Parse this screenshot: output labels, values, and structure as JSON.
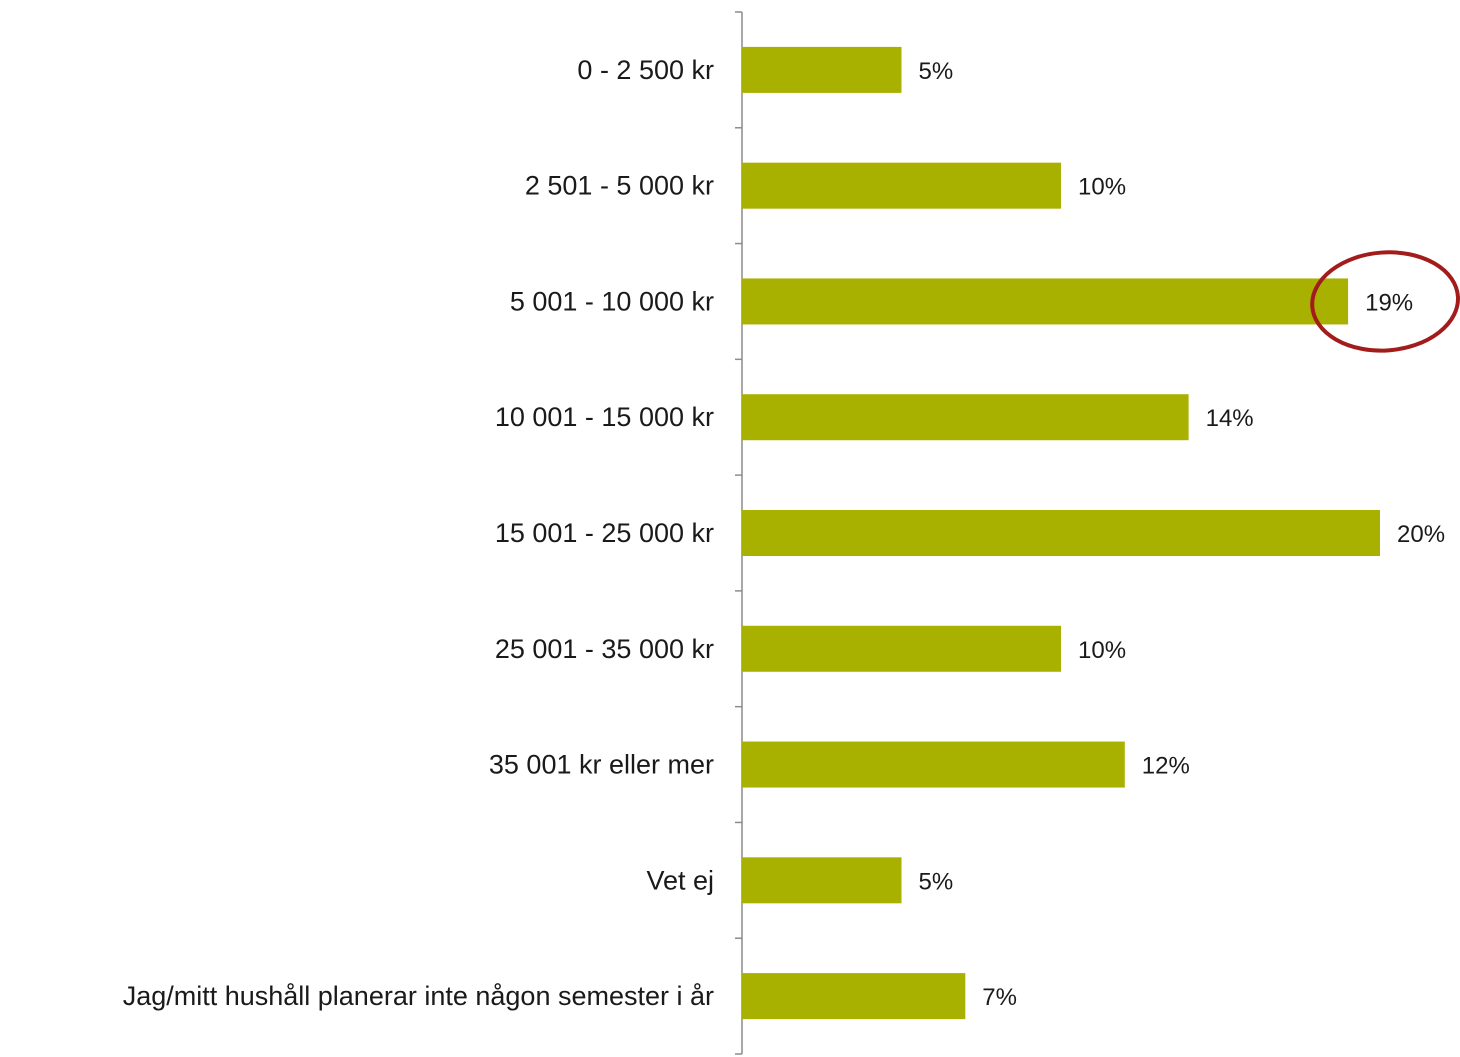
{
  "chart_data": {
    "type": "bar",
    "orientation": "horizontal",
    "categories": [
      "0 - 2 500 kr",
      "2 501 - 5 000 kr",
      "5 001 - 10 000 kr",
      "10 001 - 15 000 kr",
      "15 001 - 25 000 kr",
      "25 001 - 35 000 kr",
      "35 001 kr eller mer",
      "Vet ej",
      "Jag/mitt hushåll planerar inte någon semester i år"
    ],
    "values": [
      5,
      10,
      19,
      14,
      20,
      10,
      12,
      5,
      7
    ],
    "value_labels": [
      "5%",
      "10%",
      "19%",
      "14%",
      "20%",
      "10%",
      "12%",
      "5%",
      "7%"
    ],
    "unit": "%",
    "xlim": [
      0,
      20
    ],
    "grid": false,
    "legend": "none",
    "highlighted_category": "5 001 - 10 000 kr",
    "colors": {
      "bar": "#a8b000",
      "highlight": "#a31c1c",
      "axis": "#8c8c8c"
    }
  }
}
